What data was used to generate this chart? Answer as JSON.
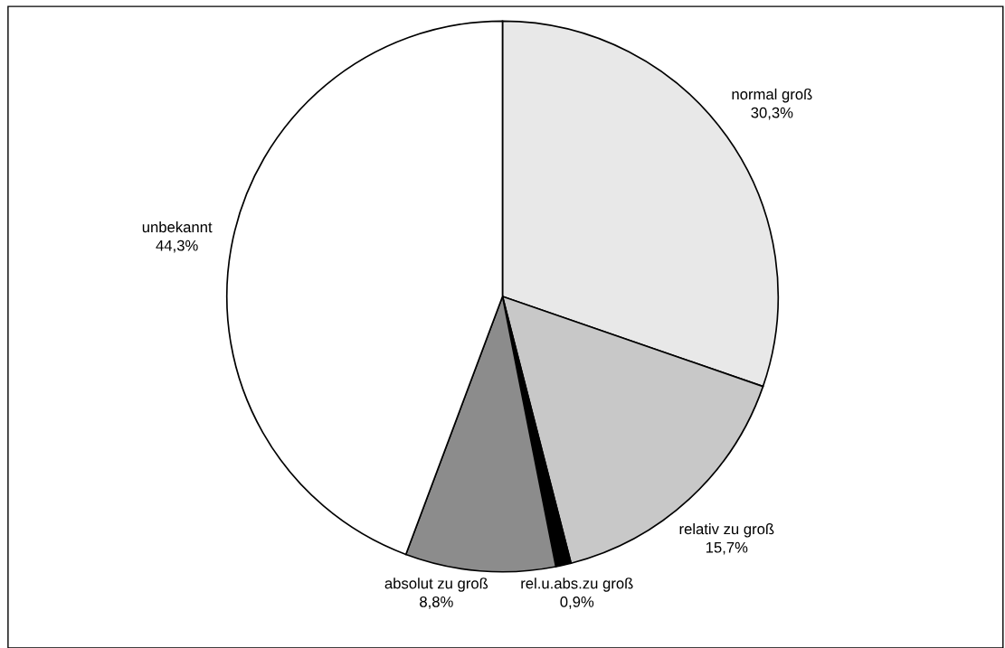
{
  "chart_data": {
    "type": "pie",
    "categories": [
      "normal groß",
      "relativ zu groß",
      "rel.u.abs.zu groß",
      "absolut zu groß",
      "unbekannt"
    ],
    "values": [
      30.3,
      15.7,
      0.9,
      8.8,
      44.3
    ],
    "value_labels": [
      "30,3%",
      "15,7%",
      "0,9%",
      "8,8%",
      "44,3%"
    ],
    "colors": [
      "#e8e8e8",
      "#c8c8c8",
      "#000000",
      "#8c8c8c",
      "#ffffff"
    ],
    "legend": false
  }
}
